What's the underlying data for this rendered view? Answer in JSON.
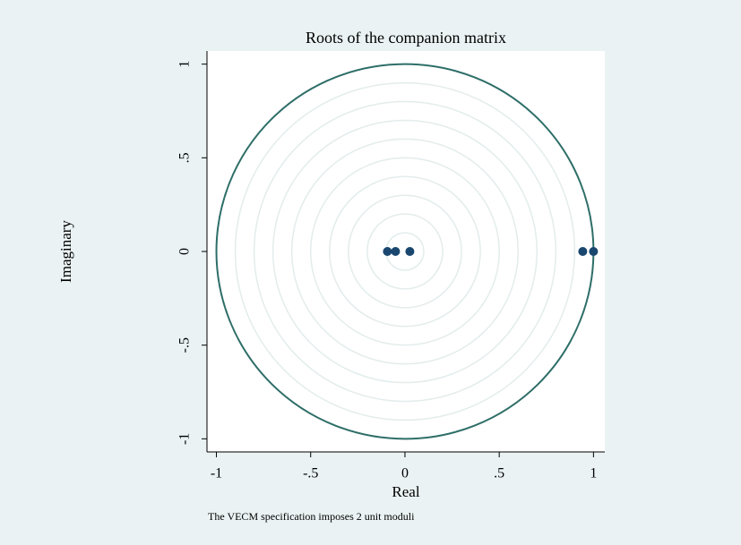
{
  "chart_data": {
    "type": "scatter",
    "title": "Roots of the companion matrix",
    "x_label": "Real",
    "y_label": "Imaginary",
    "note": "The VECM specification imposes 2 unit moduli",
    "x": [
      -0.093,
      -0.05,
      0.026,
      0.943,
      1.0
    ],
    "values": [
      0,
      0,
      0,
      0,
      0
    ],
    "color": "#1a476f",
    "xlim": [
      -1.05,
      1.06
    ],
    "ylim": [
      -1.07,
      1.07
    ],
    "xticks": [
      -1,
      {
        "value": -0.5,
        "label": "-.5"
      },
      0,
      {
        "value": 0.5,
        "label": ".5"
      },
      1
    ],
    "yticks": [
      -1,
      {
        "value": -0.5,
        "label": "-.5"
      },
      0,
      {
        "value": 0.5,
        "label": ".5"
      },
      1
    ],
    "grid": true,
    "unit_circle_color": "#2e6e68"
  }
}
